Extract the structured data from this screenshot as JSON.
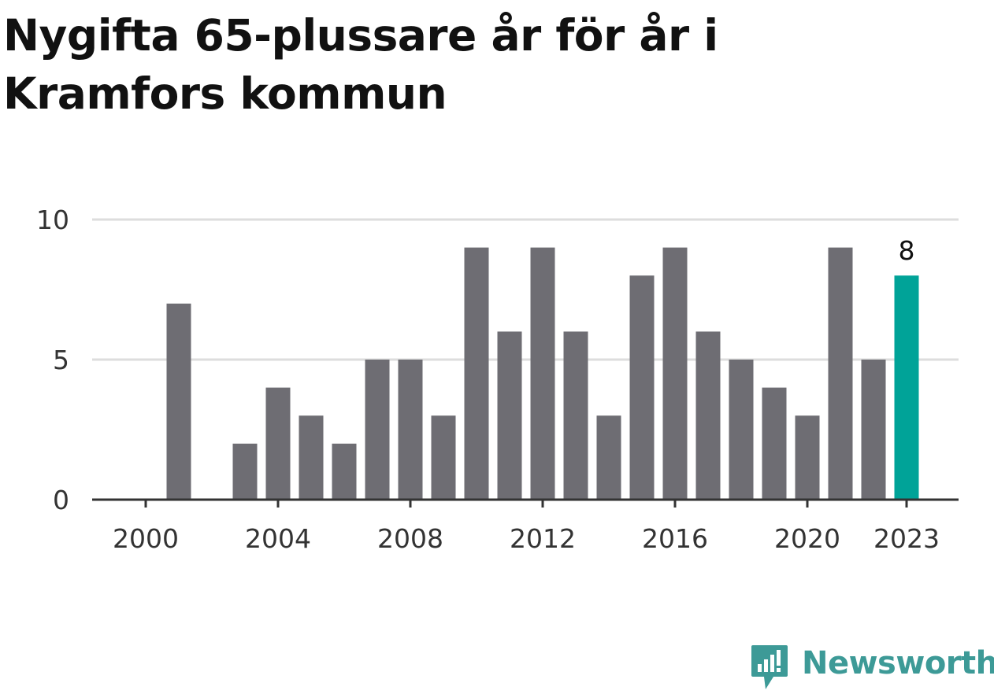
{
  "title": "Nygifta 65-plussare år för år i Kramfors kommun",
  "brand": {
    "name": "Newsworthy",
    "icon": "newsworthy-logo-icon",
    "color": "#3d9a97"
  },
  "colors": {
    "bar": "#6e6d73",
    "highlight": "#00a398",
    "grid": "#dddddd",
    "axis": "#333333"
  },
  "chart_data": {
    "type": "bar",
    "title": "Nygifta 65-plussare år för år i Kramfors kommun",
    "xlabel": "",
    "ylabel": "",
    "categories": [
      2000,
      2001,
      2002,
      2003,
      2004,
      2005,
      2006,
      2007,
      2008,
      2009,
      2010,
      2011,
      2012,
      2013,
      2014,
      2015,
      2016,
      2017,
      2018,
      2019,
      2020,
      2021,
      2022,
      2023
    ],
    "values": [
      0,
      7,
      0,
      2,
      4,
      3,
      2,
      5,
      5,
      3,
      9,
      6,
      9,
      6,
      3,
      8,
      9,
      6,
      5,
      4,
      3,
      9,
      5,
      8
    ],
    "highlight": 2023,
    "highlight_label": "8",
    "x_tick_labels": [
      "2000",
      "2004",
      "2008",
      "2012",
      "2016",
      "2020",
      "2023"
    ],
    "y_ticks": [
      0,
      5,
      10
    ],
    "ylim": [
      0,
      10
    ],
    "grid": true,
    "legend": "none"
  }
}
